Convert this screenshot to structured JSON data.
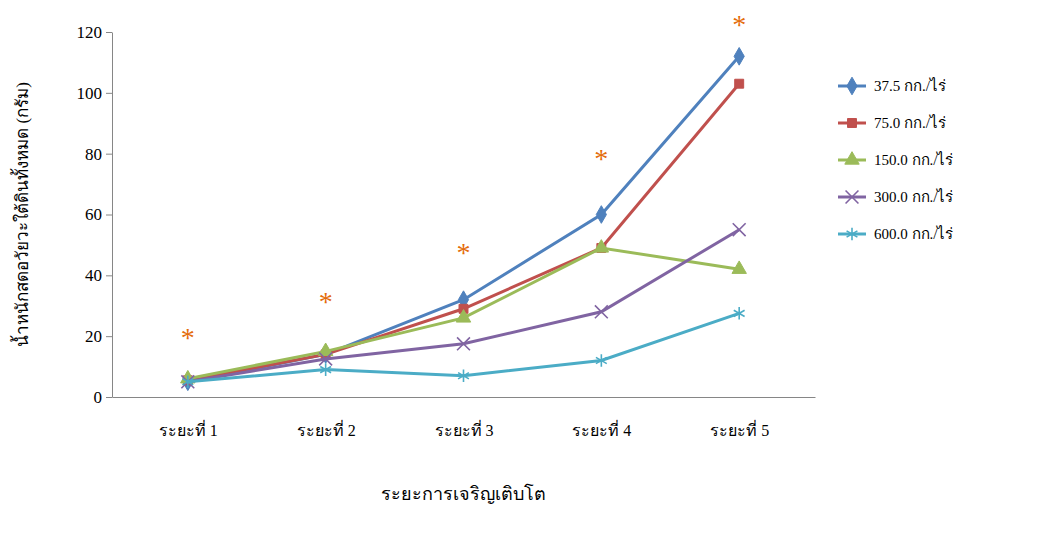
{
  "chart_data": {
    "type": "line",
    "x_label": "ระยะการเจริญเติบโต",
    "y_label": "น้ำหนักสดอวัยวะใต้ดินทั้งหมด (กรัม)",
    "categories": [
      "ระยะที่ 1",
      "ระยะที่ 2",
      "ระยะที่ 3",
      "ระยะที่ 4",
      "ระยะที่ 5"
    ],
    "series": [
      {
        "name": "37.5 กก./ไร่",
        "color": "#4f81bd",
        "marker": "diamond",
        "values": [
          5,
          14,
          32,
          60,
          112
        ]
      },
      {
        "name": "75.0 กก./ไร่",
        "color": "#c0504d",
        "marker": "square",
        "values": [
          5.5,
          14,
          29,
          49,
          103
        ]
      },
      {
        "name": "150.0 กก./ไร่",
        "color": "#9bbb59",
        "marker": "triangle",
        "values": [
          6,
          15,
          26,
          49,
          42
        ]
      },
      {
        "name": "300.0 กก./ไร่",
        "color": "#8064a2",
        "marker": "x",
        "values": [
          5,
          12.5,
          17.5,
          28,
          55
        ]
      },
      {
        "name": "600.0 กก./ไร่",
        "color": "#4bacc6",
        "marker": "asterisk",
        "values": [
          5,
          9,
          7,
          12,
          27.5
        ]
      }
    ],
    "annotations": [
      {
        "text": "*",
        "category": "ระยะที่ 1",
        "y": 21
      },
      {
        "text": "*",
        "category": "ระยะที่ 2",
        "y": 33
      },
      {
        "text": "*",
        "category": "ระยะที่ 3",
        "y": 49
      },
      {
        "text": "*",
        "category": "ระยะที่ 4",
        "y": 80
      },
      {
        "text": "*",
        "category": "ระยะที่ 5",
        "y": 124
      }
    ],
    "ylim": [
      0,
      120
    ],
    "yticks": [
      0,
      20,
      40,
      60,
      80,
      100,
      120
    ],
    "grid": false,
    "legend": "right"
  }
}
